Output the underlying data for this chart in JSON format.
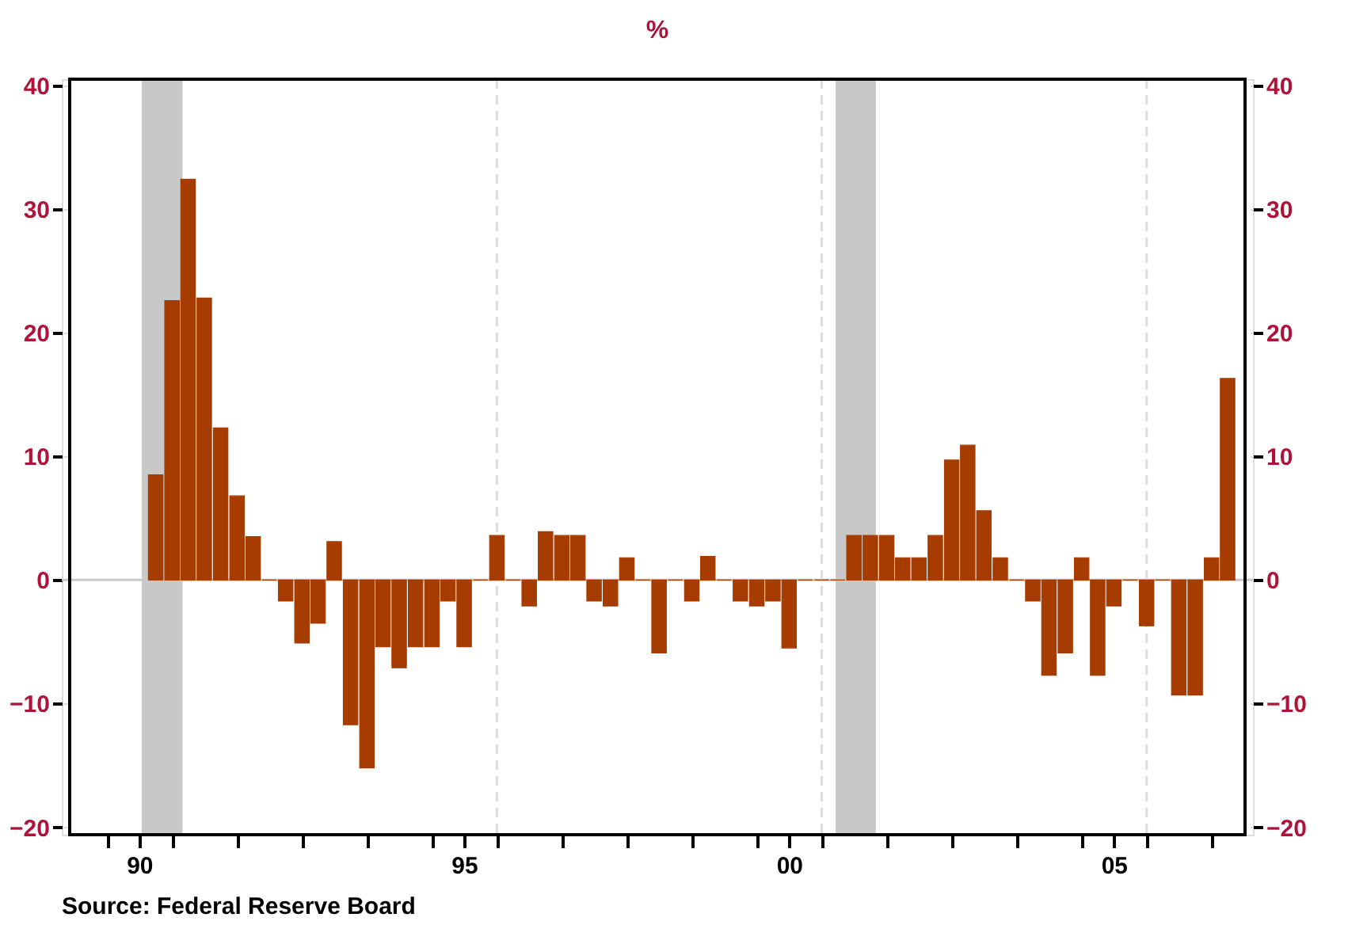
{
  "chart_data": {
    "type": "bar",
    "title": "%",
    "x": [
      "1990-10",
      "1991-01",
      "1991-04",
      "1991-07",
      "1991-10",
      "1992-01",
      "1992-04",
      "1992-07",
      "1992-10",
      "1993-01",
      "1993-04",
      "1993-07",
      "1993-10",
      "1994-01",
      "1994-04",
      "1994-07",
      "1994-10",
      "1995-01",
      "1995-04",
      "1995-07",
      "1995-10",
      "1996-01",
      "1996-04",
      "1996-07",
      "1996-10",
      "1997-01",
      "1997-04",
      "1997-07",
      "1997-10",
      "1998-01",
      "1998-04",
      "1998-07",
      "1998-10",
      "1999-01",
      "1999-04",
      "1999-07",
      "1999-10",
      "2000-01",
      "2000-04",
      "2000-07",
      "2000-10",
      "2001-01",
      "2001-04",
      "2001-07",
      "2001-10",
      "2002-01",
      "2002-04",
      "2002-07",
      "2002-10",
      "2003-01",
      "2003-04",
      "2003-07",
      "2003-10",
      "2004-01",
      "2004-04",
      "2004-07",
      "2004-10",
      "2005-01",
      "2005-04",
      "2005-07",
      "2005-10",
      "2006-01",
      "2006-04",
      "2006-07",
      "2006-10",
      "2007-01",
      "2007-04"
    ],
    "series": [
      {
        "color": "#a63c00",
        "values": [
          8.5,
          22.6,
          32.4,
          22.8,
          12.3,
          6.8,
          3.5,
          0,
          -1.7,
          -5.1,
          -3.5,
          3.1,
          -11.7,
          -15.2,
          -5.4,
          -7.1,
          -5.4,
          -5.4,
          -1.7,
          -5.4,
          0,
          3.6,
          0,
          -2.1,
          3.9,
          3.6,
          3.6,
          -1.7,
          -2.1,
          1.8,
          0,
          -5.9,
          0,
          -1.7,
          1.9,
          0,
          -1.7,
          -2.1,
          -1.7,
          -5.5,
          0,
          0,
          0,
          3.6,
          3.6,
          3.6,
          1.8,
          1.8,
          3.6,
          9.7,
          10.9,
          5.6,
          1.8,
          0,
          -1.7,
          -7.7,
          -5.9,
          1.8,
          -7.7,
          -2.1,
          0,
          -3.7,
          0,
          -9.3,
          -9.3,
          1.8,
          16.3
        ]
      }
    ],
    "xlim": [
      "1989-06-05",
      "2007-07-08"
    ],
    "xticks": [
      {
        "value": "1990-01",
        "label": null
      },
      {
        "value": "1990-07",
        "label": "90"
      },
      {
        "value": "1991-01",
        "label": null
      },
      {
        "value": "1992-01",
        "label": null
      },
      {
        "value": "1993-01",
        "label": null
      },
      {
        "value": "1994-01",
        "label": null
      },
      {
        "value": "1995-01",
        "label": null
      },
      {
        "value": "1995-07",
        "label": "95"
      },
      {
        "value": "1996-01",
        "label": null
      },
      {
        "value": "1997-01",
        "label": null
      },
      {
        "value": "1998-01",
        "label": null
      },
      {
        "value": "1999-01",
        "label": null
      },
      {
        "value": "2000-01",
        "label": null
      },
      {
        "value": "2000-07",
        "label": "00"
      },
      {
        "value": "2001-01",
        "label": null
      },
      {
        "value": "2002-01",
        "label": null
      },
      {
        "value": "2003-01",
        "label": null
      },
      {
        "value": "2004-01",
        "label": null
      },
      {
        "value": "2005-01",
        "label": null
      },
      {
        "value": "2005-07",
        "label": "05"
      },
      {
        "value": "2006-01",
        "label": null
      },
      {
        "value": "2007-01",
        "label": null
      }
    ],
    "ylim": [
      -20.6,
      40.5
    ],
    "yticks": [
      -20,
      -10,
      0,
      10,
      20,
      30,
      40
    ],
    "y2lim": [
      -20.6,
      40.5
    ],
    "y2ticks": [
      -20,
      -10,
      0,
      10,
      20,
      30,
      40
    ],
    "grid": "y",
    "bands": [
      {
        "axis": "x",
        "from": "1990-07-15",
        "to": "1991-03-01",
        "color": "#c8c8c8"
      },
      {
        "axis": "x",
        "from": "2001-03-20",
        "to": "2001-11-01",
        "color": "#c8c8c8"
      }
    ],
    "ref_lines": [
      {
        "axis": "y",
        "value": 0,
        "color": "#c8c8c8",
        "line_style": "solid"
      },
      {
        "axis": "x",
        "value": "1996-01-01",
        "color": "#dddddd",
        "line_style": "dashed"
      },
      {
        "axis": "x",
        "value": "2001-01-01",
        "color": "#dddddd",
        "line_style": "dashed"
      },
      {
        "axis": "x",
        "value": "2006-01-01",
        "color": "#dddddd",
        "line_style": "dashed"
      }
    ],
    "annotations": [
      "Source:  Federal Reserve Board"
    ]
  }
}
